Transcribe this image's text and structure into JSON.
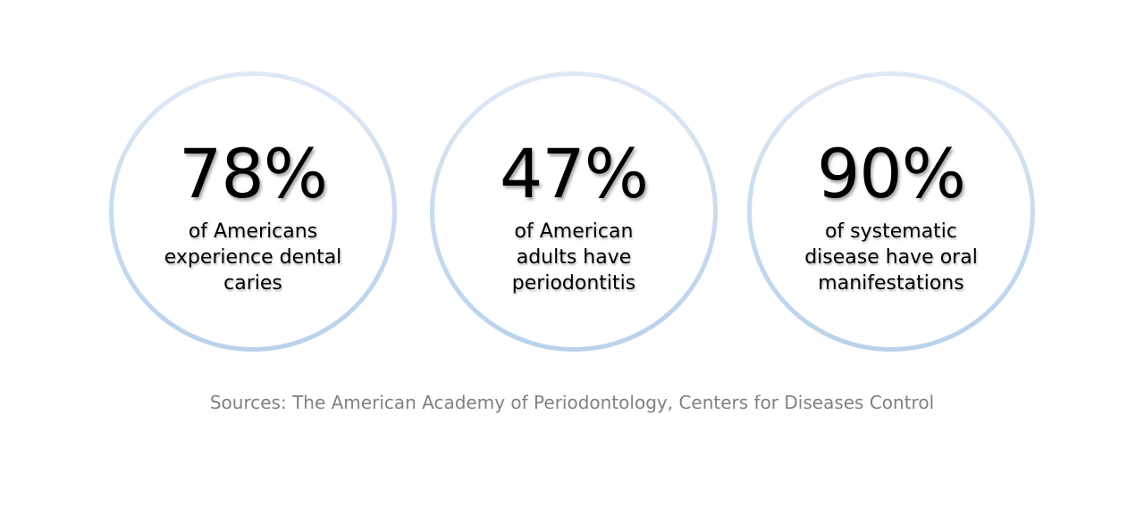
{
  "stats": [
    {
      "value": "78%",
      "label": "of Americans\nexperience dental\ncaries"
    },
    {
      "value": "47%",
      "label": "of American\nadults have\nperiodontitis"
    },
    {
      "value": "90%",
      "label": "of systematic\ndisease have oral\nmanifestations"
    }
  ],
  "sources": "Sources: The American Academy of Periodontology, Centers for Diseases Control",
  "colors": {
    "text": "#000000",
    "sources_text": "#808080",
    "ring_light": "#dfe9f5",
    "ring_dark": "#b9d2ea",
    "background": "#ffffff"
  }
}
